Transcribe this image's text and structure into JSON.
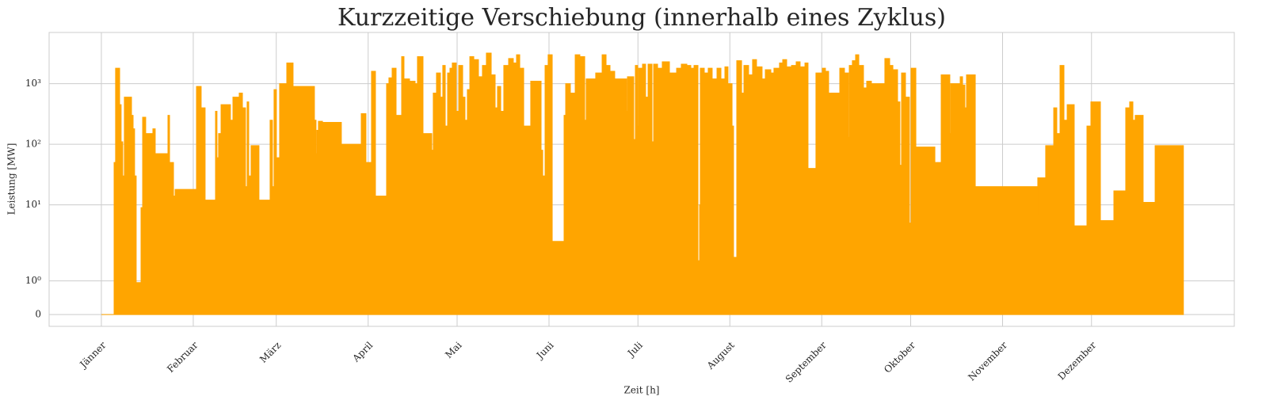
{
  "chart_data": {
    "type": "area",
    "title": "Kurzzeitige Verschiebung (innerhalb eines Zyklus)",
    "xlabel": "Zeit [h]",
    "ylabel": "Leistung [MW]",
    "color": "#ffa500",
    "grid": true,
    "yscale": "symlog",
    "linthresh": 2,
    "linscale": 1,
    "xlim": [
      -423,
      9172
    ],
    "ylim": [
      -0.35,
      7000
    ],
    "xticks": [
      {
        "value": 0,
        "label": "Jänner"
      },
      {
        "value": 744,
        "label": "Februar"
      },
      {
        "value": 1416,
        "label": "März"
      },
      {
        "value": 2160,
        "label": "April"
      },
      {
        "value": 2880,
        "label": "Mai"
      },
      {
        "value": 3624,
        "label": "Juni"
      },
      {
        "value": 4344,
        "label": "Juli"
      },
      {
        "value": 5088,
        "label": "August"
      },
      {
        "value": 5832,
        "label": "September"
      },
      {
        "value": 6552,
        "label": "Oktober"
      },
      {
        "value": 7296,
        "label": "November"
      },
      {
        "value": 8016,
        "label": "Dezember"
      }
    ],
    "yticks": [
      0,
      {
        "value": 1,
        "label": "10⁰"
      },
      {
        "value": 10,
        "label": "10¹"
      },
      {
        "value": 100,
        "label": "10²"
      },
      {
        "value": 1000,
        "label": "10³"
      }
    ],
    "x": [
      0,
      103,
      115,
      148,
      160,
      173,
      186,
      244,
      257,
      269,
      282,
      321,
      334,
      359,
      417,
      436,
      539,
      552,
      584,
      597,
      770,
      808,
      840,
      924,
      936,
      949,
      969,
      1045,
      1065,
      1116,
      1142,
      1167,
      1180,
      1193,
      1212,
      1276,
      1366,
      1385,
      1398,
      1417,
      1443,
      1501,
      1552,
      1725,
      1738,
      1745,
      1757,
      1790,
      1943,
      2104,
      2142,
      2187,
      2219,
      2309,
      2328,
      2354,
      2386,
      2431,
      2450,
      2495,
      2540,
      2559,
      2604,
      2675,
      2687,
      2713,
      2745,
      2764,
      2784,
      2803,
      2822,
      2841,
      2873,
      2893,
      2925,
      2944,
      2963,
      2983,
      3015,
      3053,
      3085,
      3117,
      3156,
      3188,
      3207,
      3233,
      3258,
      3297,
      3335,
      3361,
      3387,
      3419,
      3476,
      3560,
      3573,
      3592,
      3617,
      3650,
      3746,
      3759,
      3797,
      3836,
      3874,
      3913,
      3925,
      4002,
      4054,
      4086,
      4118,
      4156,
      4252,
      4259,
      4310,
      4323,
      4342,
      4349,
      4381,
      4406,
      4426,
      4458,
      4471,
      4503,
      4541,
      4599,
      4657,
      4695,
      4740,
      4772,
      4798,
      4830,
      4843,
      4849,
      4881,
      4913,
      4945,
      4984,
      5016,
      5048,
      5073,
      5106,
      5118,
      5144,
      5183,
      5202,
      5240,
      5272,
      5304,
      5349,
      5375,
      5420,
      5445,
      5490,
      5516,
      5548,
      5587,
      5625,
      5657,
      5696,
      5721,
      5785,
      5837,
      5862,
      5888,
      5978,
      6016,
      6048,
      6055,
      6080,
      6106,
      6132,
      6170,
      6196,
      6234,
      6343,
      6382,
      6408,
      6446,
      6465,
      6478,
      6510,
      6542,
      6555,
      6594,
      6748,
      6799,
      6869,
      6876,
      6953,
      6972,
      6991,
      7004,
      7075,
      7575,
      7581,
      7645,
      7710,
      7735,
      7761,
      7793,
      7819,
      7876,
      7979,
      8011,
      8088,
      8197,
      8293,
      8325,
      8351,
      8370,
      8434,
      8531,
      8760
    ],
    "values": [
      0,
      50,
      1800,
      450,
      110,
      30,
      600,
      300,
      180,
      30,
      0.95,
      9,
      280,
      150,
      180,
      70,
      300,
      50,
      14,
      18,
      900,
      400,
      12,
      350,
      60,
      150,
      450,
      250,
      600,
      700,
      400,
      20,
      500,
      30,
      95,
      12,
      250,
      20,
      800,
      60,
      1000,
      2200,
      900,
      250,
      70,
      170,
      240,
      230,
      100,
      320,
      50,
      1600,
      14,
      1000,
      1250,
      1800,
      300,
      2800,
      1200,
      1100,
      1000,
      2800,
      150,
      80,
      700,
      1500,
      600,
      2000,
      200,
      1500,
      1800,
      2200,
      350,
      2000,
      600,
      250,
      800,
      2800,
      2500,
      1300,
      2000,
      3200,
      1400,
      400,
      900,
      350,
      2000,
      2600,
      2200,
      3000,
      1800,
      200,
      1100,
      80,
      30,
      2000,
      3000,
      2.5,
      300,
      1000,
      700,
      3000,
      2800,
      250,
      1200,
      1500,
      3000,
      2000,
      1600,
      1200,
      350,
      1300,
      120,
      2000,
      200,
      1800,
      2100,
      600,
      2100,
      110,
      2100,
      1800,
      2300,
      1500,
      1800,
      2100,
      2000,
      1800,
      2000,
      1.6,
      10,
      1800,
      1500,
      1800,
      1200,
      1800,
      1200,
      1900,
      1000,
      200,
      1.7,
      2400,
      700,
      2000,
      1400,
      2500,
      1900,
      1200,
      1700,
      1500,
      1800,
      2200,
      2500,
      1900,
      2000,
      2300,
      1900,
      2200,
      40,
      1500,
      1800,
      1600,
      700,
      1800,
      1500,
      130,
      2000,
      2400,
      3000,
      2000,
      850,
      1100,
      1000,
      2600,
      2000,
      1700,
      500,
      45,
      1500,
      600,
      5,
      1800,
      90,
      50,
      1400,
      150,
      1000,
      1300,
      950,
      400,
      1400,
      20,
      7,
      28,
      95,
      400,
      150,
      2000,
      250,
      450,
      4.5,
      200,
      500,
      5.5,
      17,
      400,
      500,
      250,
      300,
      11,
      95,
      95
    ]
  }
}
